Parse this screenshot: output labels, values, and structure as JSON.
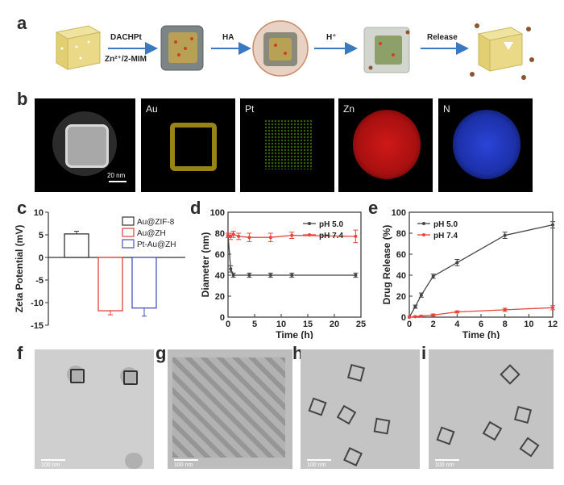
{
  "panels": {
    "a": "a",
    "b": "b",
    "c": "c",
    "d": "d",
    "e": "e",
    "f": "f",
    "g": "g",
    "h": "h",
    "i": "i"
  },
  "scheme": {
    "step1_top": "DACHPt",
    "step1_bottom": "Zn²⁺/2-MIM",
    "step2": "HA",
    "step3": "H⁺",
    "step4": "Release"
  },
  "eds": {
    "labels": [
      "Au",
      "Pt",
      "Zn",
      "N"
    ],
    "scalebar": "20 nm"
  },
  "tem_scalebar": "100 nm",
  "chart_data": [
    {
      "id": "c",
      "type": "bar",
      "ylabel": "Zeta Potential (mV)",
      "ylim": [
        -15,
        10
      ],
      "yticks": [
        10,
        5,
        0,
        -5,
        -10,
        -15
      ],
      "legend_position": "top-right",
      "series": [
        {
          "name": "Au@ZIF-8",
          "value": 5.2,
          "error": 0.6,
          "color": "#333333"
        },
        {
          "name": "Au@ZH",
          "value": -11.8,
          "error": 0.9,
          "color": "#e0403a"
        },
        {
          "name": "Pt-Au@ZH",
          "value": -11.2,
          "error": 1.8,
          "color": "#4a50c0"
        }
      ]
    },
    {
      "id": "d",
      "type": "line",
      "xlabel": "Time (h)",
      "ylabel": "Diameter (nm)",
      "xlim": [
        0,
        25
      ],
      "ylim": [
        0,
        100
      ],
      "xticks": [
        0,
        5,
        10,
        15,
        20,
        25
      ],
      "yticks": [
        0,
        20,
        40,
        60,
        80,
        100
      ],
      "legend_position": "top-right",
      "series": [
        {
          "name": "pH 5.0",
          "color": "#444444",
          "x": [
            0,
            0.5,
            1,
            4,
            8,
            12,
            24
          ],
          "y": [
            78,
            46,
            40,
            40,
            40,
            40,
            40
          ],
          "err": [
            2,
            3,
            2,
            2,
            2,
            2,
            2
          ]
        },
        {
          "name": "pH 7.4",
          "color": "#e8443c",
          "x": [
            0,
            0.5,
            1,
            2,
            4,
            8,
            12,
            24
          ],
          "y": [
            78,
            77,
            79,
            77,
            76,
            76,
            78,
            77
          ],
          "err": [
            2,
            3,
            3,
            3,
            4,
            4,
            3,
            6
          ]
        }
      ]
    },
    {
      "id": "e",
      "type": "line",
      "xlabel": "Time (h)",
      "ylabel": "Drug Release (%)",
      "xlim": [
        0,
        12
      ],
      "ylim": [
        0,
        100
      ],
      "xticks": [
        0,
        2,
        4,
        6,
        8,
        10,
        12
      ],
      "yticks": [
        0,
        20,
        40,
        60,
        80,
        100
      ],
      "legend_position": "top-left",
      "series": [
        {
          "name": "pH 5.0",
          "color": "#444444",
          "x": [
            0,
            0.5,
            1,
            2,
            4,
            8,
            12
          ],
          "y": [
            0,
            10,
            21,
            39,
            52,
            78,
            88
          ],
          "err": [
            0,
            1.5,
            2,
            2,
            3,
            3,
            3
          ]
        },
        {
          "name": "pH 7.4",
          "color": "#e8443c",
          "x": [
            0,
            0.5,
            1,
            2,
            4,
            8,
            12
          ],
          "y": [
            0,
            0.5,
            1,
            2,
            5,
            7,
            9
          ],
          "err": [
            0,
            0.5,
            0.5,
            1,
            1,
            1.5,
            2
          ]
        }
      ]
    }
  ]
}
